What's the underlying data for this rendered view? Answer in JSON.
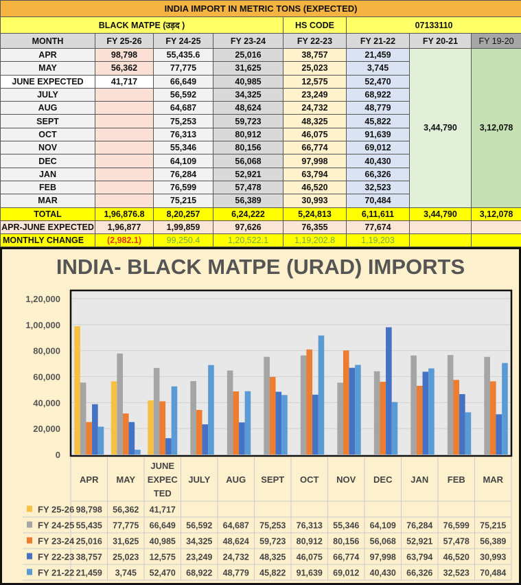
{
  "table": {
    "title": "INDIA IMPORT IN METRIC TONS (EXPECTED)",
    "commodity": "BLACK MATPE (उड़द )",
    "hs_label": "HS CODE",
    "hs_code": "07133110",
    "headers": [
      "MONTH",
      "FY 25-26",
      "FY 24-25",
      "FY 23-24",
      "FY 22-23",
      "FY 21-22",
      "FY 20-21",
      "FY 19-20"
    ],
    "rows": [
      [
        "APR",
        "98,798",
        "55,435.6",
        "25,016",
        "38,757",
        "21,459"
      ],
      [
        "MAY",
        "56,362",
        "77,775",
        "31,625",
        "25,023",
        "3,745"
      ],
      [
        "JUNE EXPECTED",
        "41,717",
        "66,649",
        "40,985",
        "12,575",
        "52,470"
      ],
      [
        "JULY",
        "",
        "56,592",
        "34,325",
        "23,249",
        "68,922"
      ],
      [
        "AUG",
        "",
        "64,687",
        "48,624",
        "24,732",
        "48,779"
      ],
      [
        "SEPT",
        "",
        "75,253",
        "59,723",
        "48,325",
        "45,822"
      ],
      [
        "OCT",
        "",
        "76,313",
        "80,912",
        "46,075",
        "91,639"
      ],
      [
        "NOV",
        "",
        "55,346",
        "80,156",
        "66,774",
        "69,012"
      ],
      [
        "DEC",
        "",
        "64,109",
        "56,068",
        "97,998",
        "40,430"
      ],
      [
        "JAN",
        "",
        "76,284",
        "52,921",
        "63,794",
        "66,326"
      ],
      [
        "FEB",
        "",
        "76,599",
        "57,478",
        "46,520",
        "32,523"
      ],
      [
        "MAR",
        "",
        "75,215",
        "56,389",
        "30,993",
        "70,484"
      ]
    ],
    "merged": {
      "fy20_21": "3,44,790",
      "fy19_20": "3,12,078"
    },
    "total": [
      "TOTAL",
      "1,96,876.8",
      "8,20,257",
      "6,24,222",
      "5,24,813",
      "6,11,611",
      "3,44,790",
      "3,12,078"
    ],
    "apr_june": [
      "APR-JUNE EXPECTED",
      "1,96,877",
      "1,99,859",
      "97,626",
      "76,355",
      "77,674",
      "",
      ""
    ],
    "monthly_change": [
      "MONTHLY CHANGE",
      "(2,982.1)",
      "99,250.4",
      "1,20,522.1",
      "1,19,202.8",
      "1,19,203",
      "",
      ""
    ]
  },
  "chart_data": {
    "type": "bar",
    "title": "INDIA- BLACK MATPE (URAD) IMPORTS",
    "categories": [
      "APR",
      "MAY",
      "JUNE EXPECTED",
      "JULY",
      "AUG",
      "SEPT",
      "OCT",
      "NOV",
      "DEC",
      "JAN",
      "FEB",
      "MAR"
    ],
    "category_lines": [
      [
        "APR"
      ],
      [
        "MAY"
      ],
      [
        "JUNE",
        "EXPEC",
        "TED"
      ],
      [
        "JULY"
      ],
      [
        "AUG"
      ],
      [
        "SEPT"
      ],
      [
        "OCT"
      ],
      [
        "NOV"
      ],
      [
        "DEC"
      ],
      [
        "JAN"
      ],
      [
        "FEB"
      ],
      [
        "MAR"
      ]
    ],
    "ylim": [
      0,
      120000
    ],
    "yticks": [
      "0",
      "20,000",
      "40,000",
      "60,000",
      "80,000",
      "1,00,000",
      "1,20,000"
    ],
    "grid": true,
    "legend": "data-table-bottom",
    "series": [
      {
        "name": "FY 25-26",
        "color": "#f6c142",
        "values": [
          98798,
          56362,
          41717,
          null,
          null,
          null,
          null,
          null,
          null,
          null,
          null,
          null
        ],
        "labels": [
          "98,798",
          "56,362",
          "41,717",
          "",
          "",
          "",
          "",
          "",
          "",
          "",
          "",
          ""
        ]
      },
      {
        "name": "FY 24-25",
        "color": "#a5a5a5",
        "values": [
          55435,
          77775,
          66649,
          56592,
          64687,
          75253,
          76313,
          55346,
          64109,
          76284,
          76599,
          75215
        ],
        "labels": [
          "55,435",
          "77,775",
          "66,649",
          "56,592",
          "64,687",
          "75,253",
          "76,313",
          "55,346",
          "64,109",
          "76,284",
          "76,599",
          "75,215"
        ]
      },
      {
        "name": "FY 23-24",
        "color": "#ed7d31",
        "values": [
          25016,
          31625,
          40985,
          34325,
          48624,
          59723,
          80912,
          80156,
          56068,
          52921,
          57478,
          56389
        ],
        "labels": [
          "25,016",
          "31,625",
          "40,985",
          "34,325",
          "48,624",
          "59,723",
          "80,912",
          "80,156",
          "56,068",
          "52,921",
          "57,478",
          "56,389"
        ]
      },
      {
        "name": "FY 22-23",
        "color": "#4472c4",
        "values": [
          38757,
          25023,
          12575,
          23249,
          24732,
          48325,
          46075,
          66774,
          97998,
          63794,
          46520,
          30993
        ],
        "labels": [
          "38,757",
          "25,023",
          "12,575",
          "23,249",
          "24,732",
          "48,325",
          "46,075",
          "66,774",
          "97,998",
          "63,794",
          "46,520",
          "30,993"
        ]
      },
      {
        "name": "FY 21-22",
        "color": "#5b9bd5",
        "values": [
          21459,
          3745,
          52470,
          68922,
          48779,
          45822,
          91639,
          69012,
          40430,
          66326,
          32523,
          70484
        ],
        "labels": [
          "21,459",
          "3,745",
          "52,470",
          "68,922",
          "48,779",
          "45,822",
          "91,639",
          "69,012",
          "40,430",
          "66,326",
          "32,523",
          "70,484"
        ]
      }
    ]
  }
}
